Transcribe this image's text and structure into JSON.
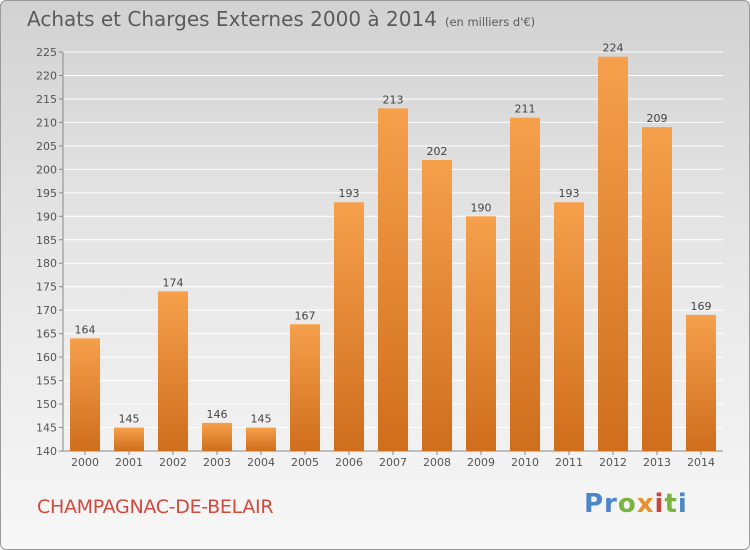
{
  "header": {
    "title": "Achats et Charges Externes 2000 à 2014",
    "subtitle": "(en milliers d'€)"
  },
  "footer": {
    "commune": "CHAMPAGNAC-DE-BELAIR",
    "brand": "Proxiti"
  },
  "colors": {
    "bar_light": "#f6a04c",
    "bar_dark": "#cf6e1c",
    "commune_text": "#d04a3e"
  },
  "chart_data": {
    "type": "bar",
    "title": "Achats et Charges Externes 2000 à 2014",
    "subtitle": "(en milliers d'€)",
    "categories": [
      "2000",
      "2001",
      "2002",
      "2003",
      "2004",
      "2005",
      "2006",
      "2007",
      "2008",
      "2009",
      "2010",
      "2011",
      "2012",
      "2013",
      "2014"
    ],
    "values": [
      164,
      145,
      174,
      146,
      145,
      167,
      193,
      213,
      202,
      190,
      211,
      193,
      224,
      209,
      169
    ],
    "ylim": [
      140,
      225
    ],
    "yticks": [
      140,
      145,
      150,
      155,
      160,
      165,
      170,
      175,
      180,
      185,
      190,
      195,
      200,
      205,
      210,
      215,
      220,
      225
    ],
    "grid": true,
    "data_labels": true
  }
}
